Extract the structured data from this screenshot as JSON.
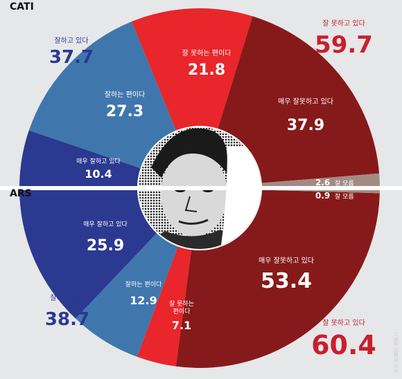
{
  "chart_data": [
    {
      "type": "pie",
      "section_label": "CATI",
      "categories": [
        "매우 잘하고 있다",
        "잘하는 편이다",
        "잘 못하는 편이다",
        "매우 잘못하고 있다",
        "잘 모름"
      ],
      "values": [
        10.4,
        27.3,
        21.8,
        37.9,
        2.6
      ],
      "slice_labels": [
        "매우 잘하고 있다",
        "잘하는 편이다",
        "잘 못하는 편이다",
        "매우 잘못하고 있다",
        "잘 모름"
      ],
      "colors": [
        "#2b3991",
        "#3f77ad",
        "#e8262b",
        "#861a1b",
        "#a28b83"
      ],
      "totals": [
        {
          "label": "잘하고 있다",
          "value": 37.7,
          "color": "#2b3991"
        },
        {
          "label": "잘 못하고 있다",
          "value": 59.7,
          "color": "#c81f2d"
        }
      ]
    },
    {
      "type": "pie",
      "section_label": "ARS",
      "categories": [
        "매우 잘하고 있다",
        "잘하는 편이다",
        "잘 못하는 편이다",
        "매우 잘못하고 있다",
        "잘 모름"
      ],
      "values": [
        25.9,
        12.9,
        7.1,
        53.4,
        0.9
      ],
      "slice_labels": [
        "매우 잘하고 있다",
        "잘하는 편이다",
        "잘 못하는\n편이다",
        "매우 잘못하고 있다",
        "잘 모름"
      ],
      "colors": [
        "#2b3991",
        "#3f77ad",
        "#e8262b",
        "#861a1b",
        "#a28b83"
      ],
      "totals": [
        {
          "label": "잘하고 있다",
          "value": 38.7,
          "color": "#2b3991"
        },
        {
          "label": "잘 못하고 있다",
          "value": 60.4,
          "color": "#c81f2d"
        }
      ]
    }
  ],
  "background_color": "#e6e7e9",
  "center_image_icon": "president-portrait-halftone-icon",
  "credit": "그래픽 김현서 기자"
}
